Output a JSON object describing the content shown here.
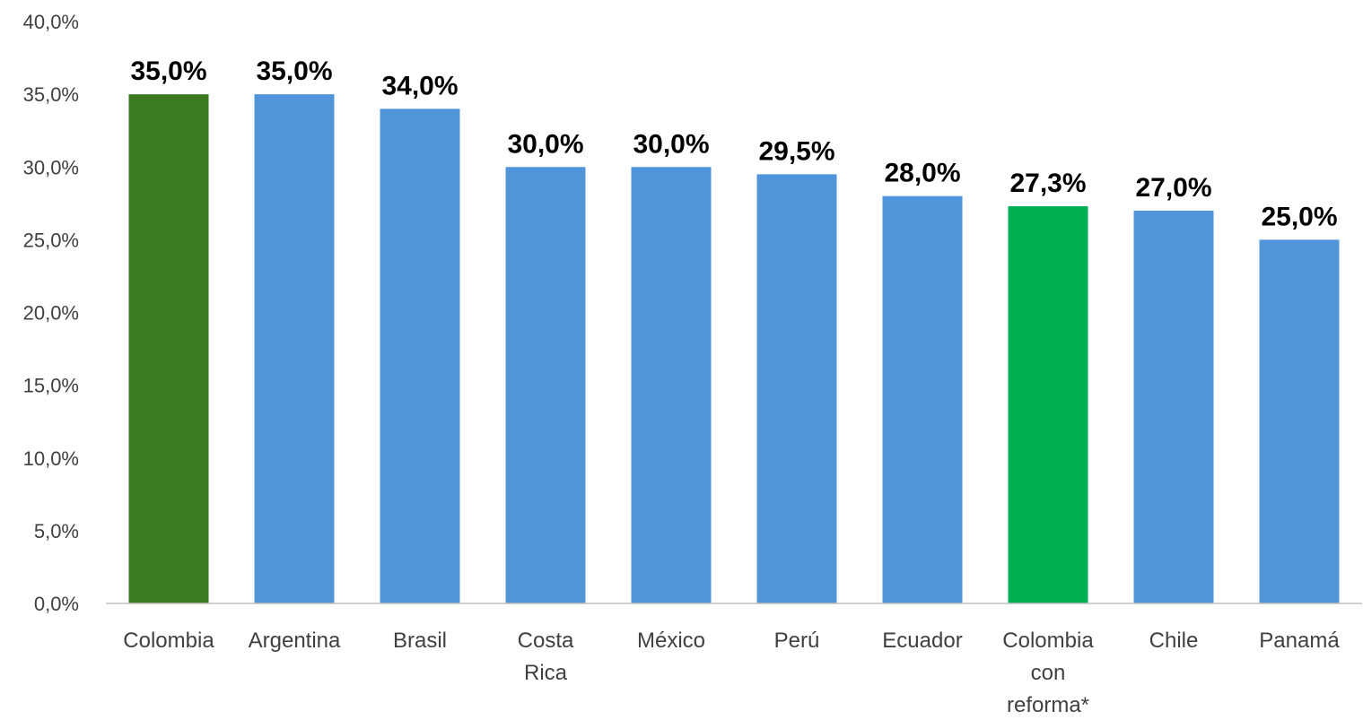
{
  "chart_data": {
    "type": "bar",
    "title": "",
    "xlabel": "",
    "ylabel": "",
    "ylim": [
      0,
      40
    ],
    "y_tick_step": 5,
    "y_tick_labels": [
      "0,0%",
      "5,0%",
      "10,0%",
      "15,0%",
      "20,0%",
      "25,0%",
      "30,0%",
      "35,0%",
      "40,0%"
    ],
    "grid": false,
    "legend": "none",
    "categories": [
      [
        "Colombia"
      ],
      [
        "Argentina"
      ],
      [
        "Brasil"
      ],
      [
        "Costa",
        "Rica"
      ],
      [
        "México"
      ],
      [
        "Perú"
      ],
      [
        "Ecuador"
      ],
      [
        "Colombia",
        "con",
        "reforma*"
      ],
      [
        "Chile"
      ],
      [
        "Panamá"
      ]
    ],
    "values": [
      35.0,
      35.0,
      34.0,
      30.0,
      30.0,
      29.5,
      28.0,
      27.3,
      27.0,
      25.0
    ],
    "data_labels": [
      "35,0%",
      "35,0%",
      "34,0%",
      "30,0%",
      "30,0%",
      "29,5%",
      "28,0%",
      "27,3%",
      "27,0%",
      "25,0%"
    ],
    "colors": [
      "#3b7a22",
      "#5095d9",
      "#5095d9",
      "#5095d9",
      "#5095d9",
      "#5095d9",
      "#5095d9",
      "#00b050",
      "#5095d9",
      "#5095d9"
    ],
    "axis_color": "#bfbfbf"
  }
}
